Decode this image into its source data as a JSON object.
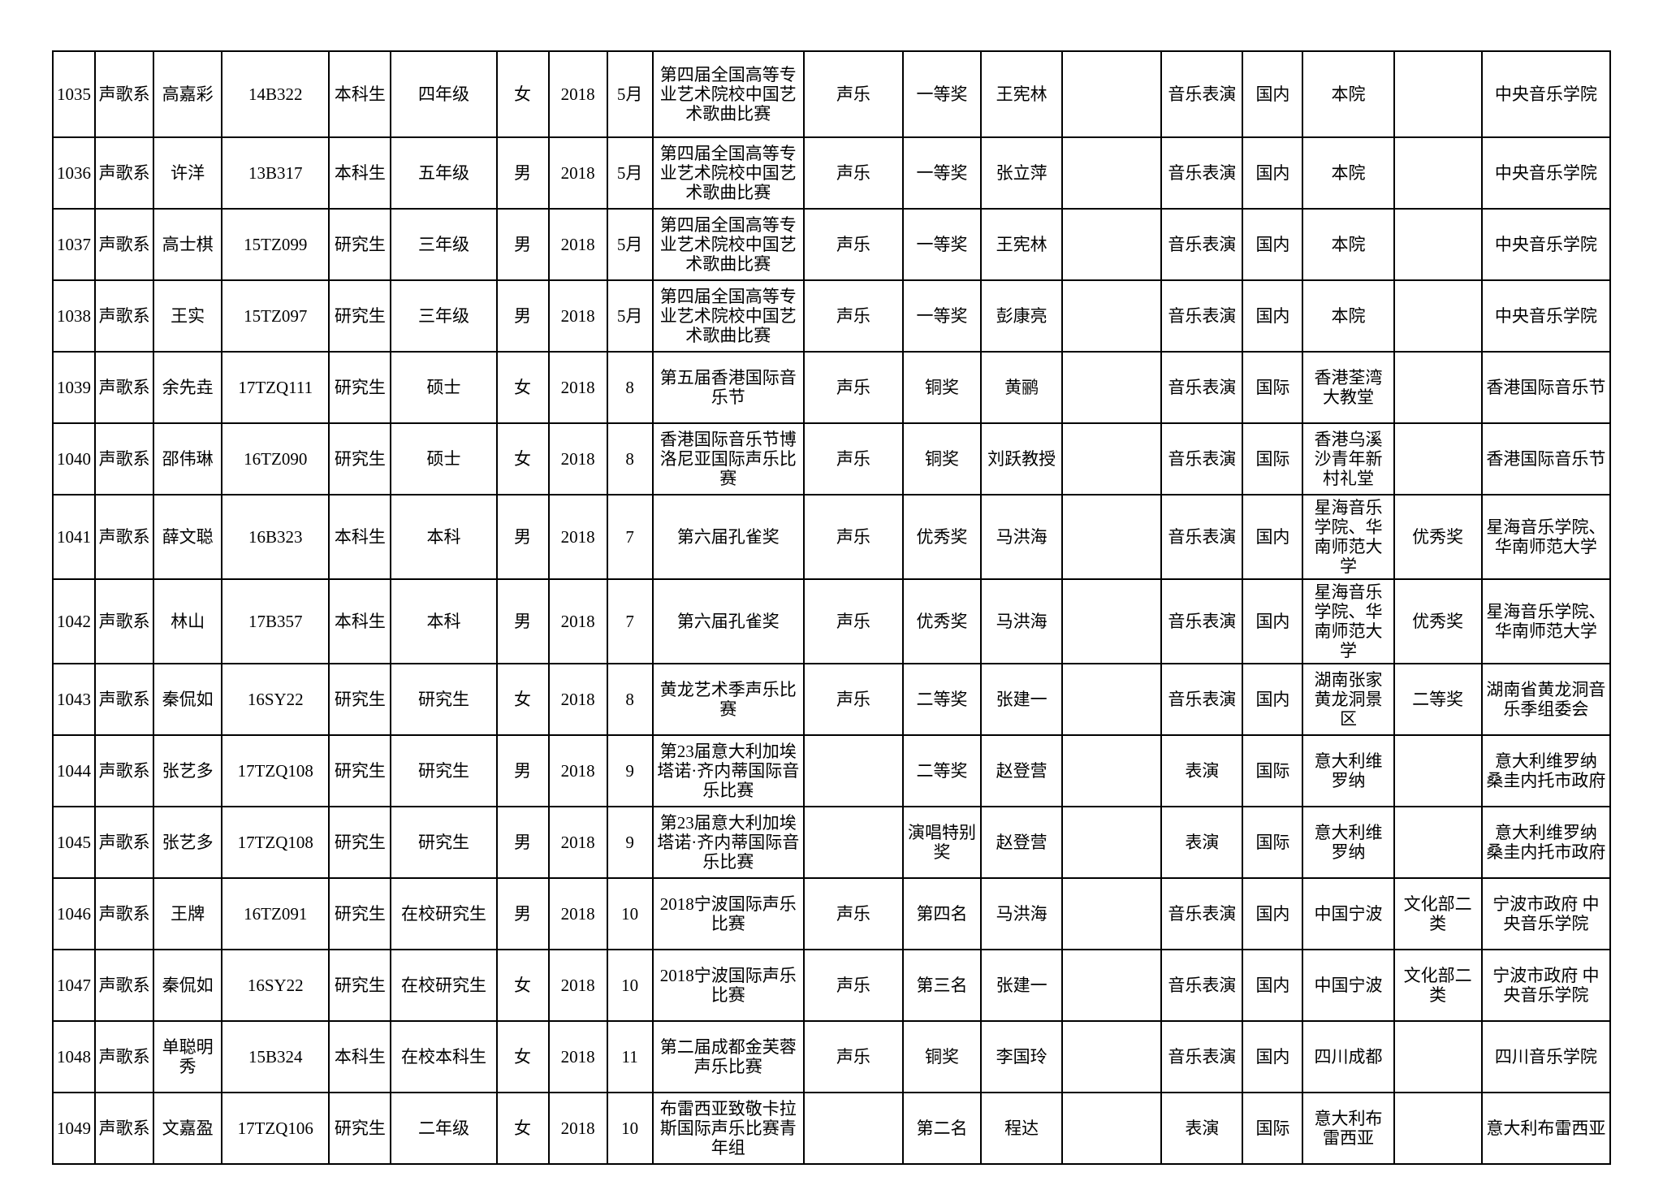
{
  "table": {
    "rows": [
      {
        "seq": "1035",
        "dept": "声歌系",
        "name": "高嘉彩",
        "student_id": "14B322",
        "student_type": "本科生",
        "grade": "四年级",
        "gender": "女",
        "year": "2018",
        "month": "5月",
        "competition": "第四届全国高等专业艺术院校中国艺术歌曲比赛",
        "category": "声乐",
        "award": "一等奖",
        "teacher": "王宪林",
        "spare": "",
        "major": "音乐表演",
        "scope": "国内",
        "location": "本院",
        "extra": "",
        "organizer": "中央音乐学院"
      },
      {
        "seq": "1036",
        "dept": "声歌系",
        "name": "许洋",
        "student_id": "13B317",
        "student_type": "本科生",
        "grade": "五年级",
        "gender": "男",
        "year": "2018",
        "month": "5月",
        "competition": "第四届全国高等专业艺术院校中国艺术歌曲比赛",
        "category": "声乐",
        "award": "一等奖",
        "teacher": "张立萍",
        "spare": "",
        "major": "音乐表演",
        "scope": "国内",
        "location": "本院",
        "extra": "",
        "organizer": "中央音乐学院"
      },
      {
        "seq": "1037",
        "dept": "声歌系",
        "name": "高士棋",
        "student_id": "15TZ099",
        "student_type": "研究生",
        "grade": "三年级",
        "gender": "男",
        "year": "2018",
        "month": "5月",
        "competition": "第四届全国高等专业艺术院校中国艺术歌曲比赛",
        "category": "声乐",
        "award": "一等奖",
        "teacher": "王宪林",
        "spare": "",
        "major": "音乐表演",
        "scope": "国内",
        "location": "本院",
        "extra": "",
        "organizer": "中央音乐学院"
      },
      {
        "seq": "1038",
        "dept": "声歌系",
        "name": "王实",
        "student_id": "15TZ097",
        "student_type": "研究生",
        "grade": "三年级",
        "gender": "男",
        "year": "2018",
        "month": "5月",
        "competition": "第四届全国高等专业艺术院校中国艺术歌曲比赛",
        "category": "声乐",
        "award": "一等奖",
        "teacher": "彭康亮",
        "spare": "",
        "major": "音乐表演",
        "scope": "国内",
        "location": "本院",
        "extra": "",
        "organizer": "中央音乐学院"
      },
      {
        "seq": "1039",
        "dept": "声歌系",
        "name": "余先垚",
        "student_id": "17TZQ111",
        "student_type": "研究生",
        "grade": "硕士",
        "gender": "女",
        "year": "2018",
        "month": "8",
        "competition": "第五届香港国际音乐节",
        "category": "声乐",
        "award": "铜奖",
        "teacher": "黄鹂",
        "spare": "",
        "major": "音乐表演",
        "scope": "国际",
        "location": "香港荃湾大教堂",
        "extra": "",
        "organizer": "香港国际音乐节"
      },
      {
        "seq": "1040",
        "dept": "声歌系",
        "name": "邵伟琳",
        "student_id": "16TZ090",
        "student_type": "研究生",
        "grade": "硕士",
        "gender": "女",
        "year": "2018",
        "month": "8",
        "competition": "香港国际音乐节博洛尼亚国际声乐比赛",
        "category": "声乐",
        "award": "铜奖",
        "teacher": "刘跃教授",
        "spare": "",
        "major": "音乐表演",
        "scope": "国际",
        "location": "香港乌溪沙青年新村礼堂",
        "extra": "",
        "organizer": "香港国际音乐节"
      },
      {
        "seq": "1041",
        "dept": "声歌系",
        "name": "薛文聪",
        "student_id": "16B323",
        "student_type": "本科生",
        "grade": "本科",
        "gender": "男",
        "year": "2018",
        "month": "7",
        "competition": "第六届孔雀奖",
        "category": "声乐",
        "award": "优秀奖",
        "teacher": "马洪海",
        "spare": "",
        "major": "音乐表演",
        "scope": "国内",
        "location": "星海音乐学院、华南师范大学",
        "extra": "优秀奖",
        "organizer": "星海音乐学院、华南师范大学"
      },
      {
        "seq": "1042",
        "dept": "声歌系",
        "name": "林山",
        "student_id": "17B357",
        "student_type": "本科生",
        "grade": "本科",
        "gender": "男",
        "year": "2018",
        "month": "7",
        "competition": "第六届孔雀奖",
        "category": "声乐",
        "award": "优秀奖",
        "teacher": "马洪海",
        "spare": "",
        "major": "音乐表演",
        "scope": "国内",
        "location": "星海音乐学院、华南师范大学",
        "extra": "优秀奖",
        "organizer": "星海音乐学院、华南师范大学"
      },
      {
        "seq": "1043",
        "dept": "声歌系",
        "name": "秦侃如",
        "student_id": "16SY22",
        "student_type": "研究生",
        "grade": "研究生",
        "gender": "女",
        "year": "2018",
        "month": "8",
        "competition": "黄龙艺术季声乐比赛",
        "category": "声乐",
        "award": "二等奖",
        "teacher": "张建一",
        "spare": "",
        "major": "音乐表演",
        "scope": "国内",
        "location": "湖南张家黄龙洞景区",
        "extra": "二等奖",
        "organizer": "湖南省黄龙洞音乐季组委会"
      },
      {
        "seq": "1044",
        "dept": "声歌系",
        "name": "张艺多",
        "student_id": "17TZQ108",
        "student_type": "研究生",
        "grade": "研究生",
        "gender": "男",
        "year": "2018",
        "month": "9",
        "competition": "第23届意大利加埃塔诺·齐内蒂国际音乐比赛",
        "category": "",
        "award": "二等奖",
        "teacher": "赵登营",
        "spare": "",
        "major": "表演",
        "scope": "国际",
        "location": "意大利维罗纳",
        "extra": "",
        "organizer": "意大利维罗纳 桑圭内托市政府"
      },
      {
        "seq": "1045",
        "dept": "声歌系",
        "name": "张艺多",
        "student_id": "17TZQ108",
        "student_type": "研究生",
        "grade": "研究生",
        "gender": "男",
        "year": "2018",
        "month": "9",
        "competition": "第23届意大利加埃塔诺·齐内蒂国际音乐比赛",
        "category": "",
        "award": "演唱特别奖",
        "teacher": "赵登营",
        "spare": "",
        "major": "表演",
        "scope": "国际",
        "location": "意大利维罗纳",
        "extra": "",
        "organizer": "意大利维罗纳 桑圭内托市政府"
      },
      {
        "seq": "1046",
        "dept": "声歌系",
        "name": "王牌",
        "student_id": "16TZ091",
        "student_type": "研究生",
        "grade": "在校研究生",
        "gender": "男",
        "year": "2018",
        "month": "10",
        "competition": "2018宁波国际声乐比赛",
        "category": "声乐",
        "award": "第四名",
        "teacher": "马洪海",
        "spare": "",
        "major": "音乐表演",
        "scope": "国内",
        "location": "中国宁波",
        "extra": "文化部二类",
        "organizer": "宁波市政府 中央音乐学院"
      },
      {
        "seq": "1047",
        "dept": "声歌系",
        "name": "秦侃如",
        "student_id": "16SY22",
        "student_type": "研究生",
        "grade": "在校研究生",
        "gender": "女",
        "year": "2018",
        "month": "10",
        "competition": "2018宁波国际声乐比赛",
        "category": "声乐",
        "award": "第三名",
        "teacher": "张建一",
        "spare": "",
        "major": "音乐表演",
        "scope": "国内",
        "location": "中国宁波",
        "extra": "文化部二类",
        "organizer": "宁波市政府 中央音乐学院"
      },
      {
        "seq": "1048",
        "dept": "声歌系",
        "name": "单聪明秀",
        "student_id": "15B324",
        "student_type": "本科生",
        "grade": "在校本科生",
        "gender": "女",
        "year": "2018",
        "month": "11",
        "competition": "第二届成都金芙蓉声乐比赛",
        "category": "声乐",
        "award": "铜奖",
        "teacher": "李国玲",
        "spare": "",
        "major": "音乐表演",
        "scope": "国内",
        "location": "四川成都",
        "extra": "",
        "organizer": "四川音乐学院"
      },
      {
        "seq": "1049",
        "dept": "声歌系",
        "name": "文嘉盈",
        "student_id": "17TZQ106",
        "student_type": "研究生",
        "grade": "二年级",
        "gender": "女",
        "year": "2018",
        "month": "10",
        "competition": "布雷西亚致敬卡拉斯国际声乐比赛青年组",
        "category": "",
        "award": "第二名",
        "teacher": "程达",
        "spare": "",
        "major": "表演",
        "scope": "国际",
        "location": "意大利布雷西亚",
        "extra": "",
        "organizer": "意大利布雷西亚"
      }
    ]
  }
}
